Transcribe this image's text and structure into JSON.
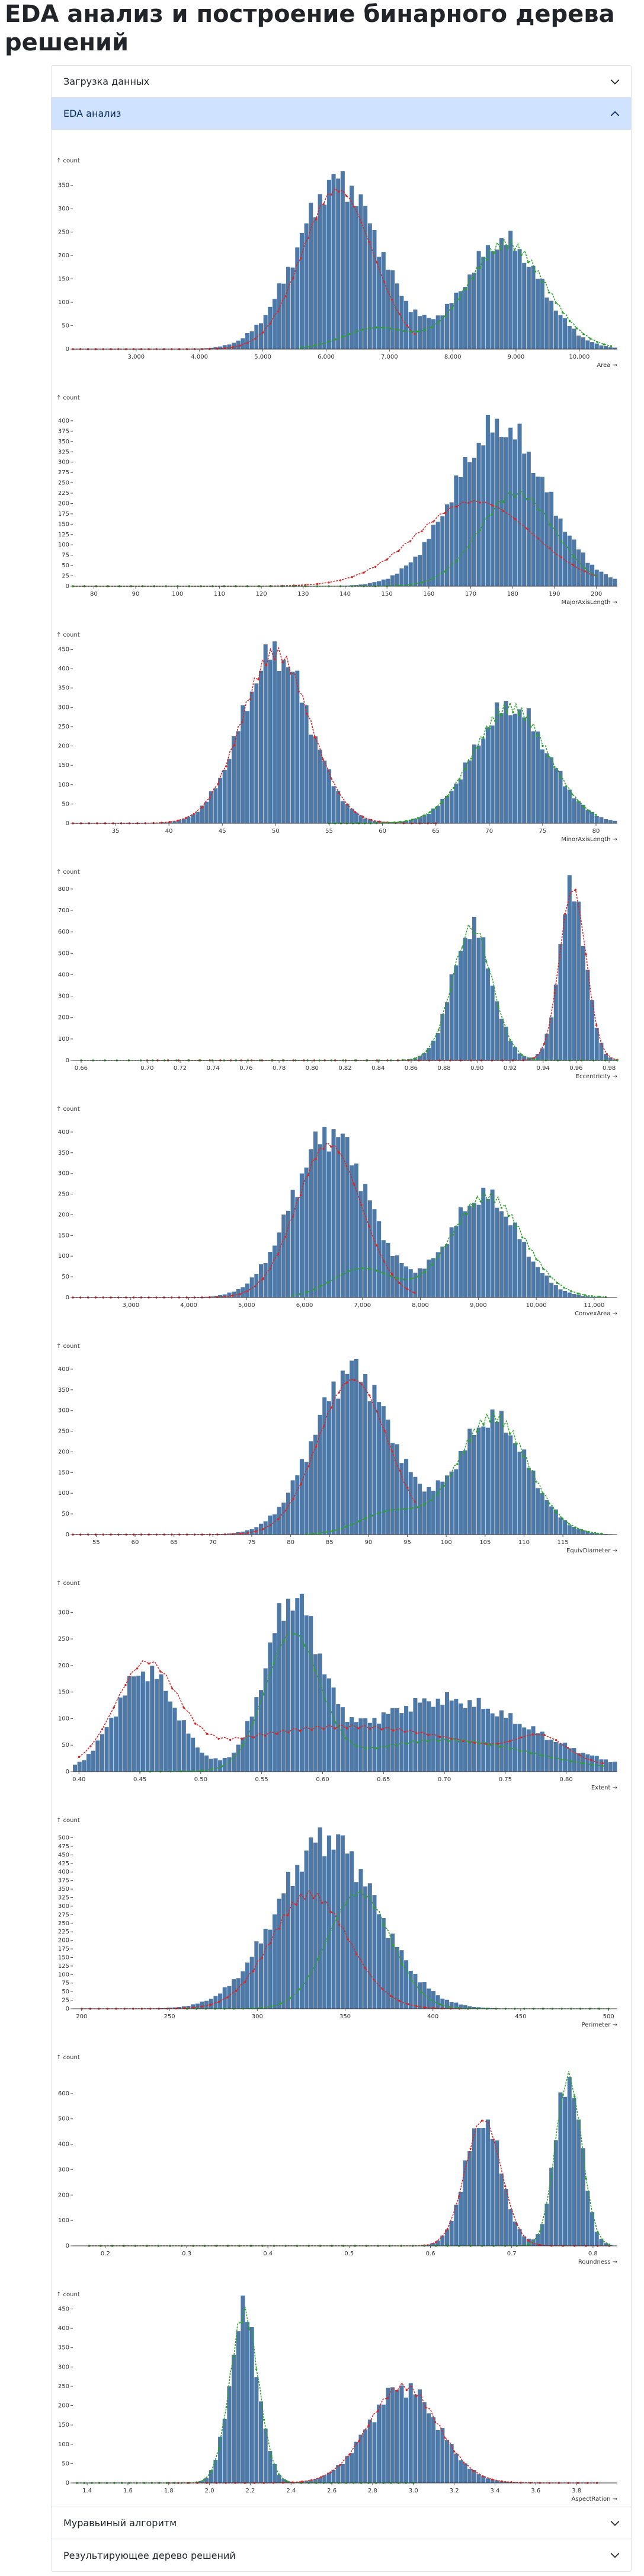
{
  "page": {
    "title": "EDA анализ и построение бинарного дерева решений"
  },
  "accordion": [
    {
      "label": "Загрузка данных",
      "open": false
    },
    {
      "label": "EDA анализ",
      "open": true
    },
    {
      "label": "Муравьиный алгоритм",
      "open": false
    },
    {
      "label": "Результирующее дерево решений",
      "open": false
    }
  ],
  "colors": {
    "bars": "#4e79a7",
    "series_a": "#d62728",
    "series_b": "#2ca02c"
  },
  "chart_data": [
    {
      "type": "bar",
      "xlabel": "Area →",
      "ylabel": "↑ count",
      "xlim": [
        2000,
        10600
      ],
      "ylim": [
        0,
        380
      ],
      "xticks": [
        3000,
        4000,
        5000,
        6000,
        7000,
        8000,
        9000,
        10000
      ],
      "xticklabels": [
        "3,000",
        "4,000",
        "5,000",
        "6,000",
        "7,000",
        "8,000",
        "9,000",
        "10,000"
      ],
      "yticks": [
        0,
        50,
        100,
        150,
        200,
        250,
        300,
        350
      ],
      "bars": {
        "components": [
          {
            "mu": 6200,
            "sigma": 650,
            "peak": 360
          },
          {
            "mu": 8800,
            "sigma": 600,
            "peak": 230
          }
        ]
      },
      "series": [
        {
          "color": "#d62728",
          "range": [
            2000,
            7400
          ],
          "components": [
            {
              "mu": 6180,
              "sigma": 560,
              "peak": 340
            }
          ]
        },
        {
          "color": "#2ca02c",
          "range": [
            5600,
            10500
          ],
          "components": [
            {
              "mu": 8850,
              "sigma": 620,
              "peak": 225
            },
            {
              "mu": 6800,
              "sigma": 520,
              "peak": 45
            }
          ]
        }
      ]
    },
    {
      "type": "bar",
      "xlabel": "MajorAxisLength →",
      "ylabel": "↑ count",
      "xlim": [
        75,
        205
      ],
      "ylim": [
        0,
        430
      ],
      "xticks": [
        80,
        90,
        100,
        110,
        120,
        130,
        140,
        150,
        160,
        170,
        180,
        190,
        200
      ],
      "xticklabels": [
        "80",
        "90",
        "100",
        "110",
        "120",
        "130",
        "140",
        "150",
        "160",
        "170",
        "180",
        "190",
        "200"
      ],
      "yticks": [
        0,
        25,
        50,
        75,
        100,
        125,
        150,
        175,
        200,
        225,
        250,
        275,
        300,
        325,
        350,
        375,
        400
      ],
      "bars": {
        "components": [
          {
            "mu": 177,
            "sigma": 11,
            "peak": 385
          }
        ]
      },
      "series": [
        {
          "color": "#d62728",
          "range": [
            75,
            200
          ],
          "components": [
            {
              "mu": 171,
              "sigma": 14,
              "peak": 205
            }
          ]
        },
        {
          "color": "#2ca02c",
          "range": [
            75,
            200
          ],
          "components": [
            {
              "mu": 181,
              "sigma": 9,
              "peak": 225
            }
          ]
        }
      ]
    },
    {
      "type": "bar",
      "xlabel": "MinorAxisLength →",
      "ylabel": "↑ count",
      "xlim": [
        31,
        82
      ],
      "ylim": [
        0,
        460
      ],
      "xticks": [
        35,
        40,
        45,
        50,
        55,
        60,
        65,
        70,
        75,
        80
      ],
      "xticklabels": [
        "35",
        "40",
        "45",
        "50",
        "55",
        "60",
        "65",
        "70",
        "75",
        "80"
      ],
      "yticks": [
        0,
        50,
        100,
        150,
        200,
        250,
        300,
        350,
        400,
        450
      ],
      "bars": {
        "components": [
          {
            "mu": 50,
            "sigma": 3.2,
            "peak": 440
          },
          {
            "mu": 72,
            "sigma": 3.5,
            "peak": 300
          }
        ]
      },
      "series": [
        {
          "color": "#d62728",
          "range": [
            31,
            65
          ],
          "components": [
            {
              "mu": 50,
              "sigma": 3.2,
              "peak": 440
            }
          ]
        },
        {
          "color": "#2ca02c",
          "range": [
            55,
            80
          ],
          "components": [
            {
              "mu": 72,
              "sigma": 3.5,
              "peak": 300
            }
          ]
        }
      ]
    },
    {
      "type": "bar",
      "xlabel": "Eccentricity →",
      "ylabel": "↑ count",
      "xlim": [
        0.655,
        0.985
      ],
      "ylim": [
        0,
        830
      ],
      "xticks": [
        0.66,
        0.7,
        0.72,
        0.74,
        0.76,
        0.78,
        0.8,
        0.82,
        0.84,
        0.86,
        0.88,
        0.9,
        0.92,
        0.94,
        0.96,
        0.98
      ],
      "xticklabels": [
        "0.66",
        "0.70",
        "0.72",
        "0.74",
        "0.76",
        "0.78",
        "0.80",
        "0.82",
        "0.84",
        "0.86",
        "0.88",
        "0.90",
        "0.92",
        "0.94",
        "0.96",
        "0.98"
      ],
      "yticks": [
        0,
        100,
        200,
        300,
        400,
        500,
        600,
        700,
        800
      ],
      "bars": {
        "components": [
          {
            "mu": 0.897,
            "sigma": 0.012,
            "peak": 620
          },
          {
            "mu": 0.958,
            "sigma": 0.008,
            "peak": 805
          }
        ]
      },
      "series": [
        {
          "color": "#d62728",
          "range": [
            0.7,
            0.985
          ],
          "components": [
            {
              "mu": 0.958,
              "sigma": 0.008,
              "peak": 805
            }
          ]
        },
        {
          "color": "#2ca02c",
          "range": [
            0.66,
            0.985
          ],
          "components": [
            {
              "mu": 0.897,
              "sigma": 0.012,
              "peak": 620
            }
          ]
        }
      ]
    },
    {
      "type": "bar",
      "xlabel": "ConvexArea →",
      "ylabel": "↑ count",
      "xlim": [
        2000,
        11400
      ],
      "ylim": [
        0,
        430
      ],
      "xticks": [
        3000,
        4000,
        5000,
        6000,
        7000,
        8000,
        9000,
        10000,
        11000
      ],
      "xticklabels": [
        "3,000",
        "4,000",
        "5,000",
        "6,000",
        "7,000",
        "8,000",
        "9,000",
        "10,000",
        "11,000"
      ],
      "yticks": [
        0,
        50,
        100,
        150,
        200,
        250,
        300,
        350,
        400
      ],
      "bars": {
        "components": [
          {
            "mu": 6450,
            "sigma": 650,
            "peak": 400
          },
          {
            "mu": 9100,
            "sigma": 600,
            "peak": 245
          }
        ]
      },
      "series": [
        {
          "color": "#d62728",
          "range": [
            2000,
            7900
          ],
          "components": [
            {
              "mu": 6420,
              "sigma": 560,
              "peak": 370
            }
          ]
        },
        {
          "color": "#2ca02c",
          "range": [
            5800,
            11200
          ],
          "components": [
            {
              "mu": 9150,
              "sigma": 620,
              "peak": 245
            },
            {
              "mu": 7000,
              "sigma": 520,
              "peak": 70
            }
          ]
        }
      ]
    },
    {
      "type": "bar",
      "xlabel": "EquivDiameter →",
      "ylabel": "↑ count",
      "xlim": [
        52,
        122
      ],
      "ylim": [
        0,
        430
      ],
      "xticks": [
        55,
        60,
        65,
        70,
        75,
        80,
        85,
        90,
        95,
        100,
        105,
        110,
        115
      ],
      "xticklabels": [
        "55",
        "60",
        "65",
        "70",
        "75",
        "80",
        "85",
        "90",
        "95",
        "100",
        "105",
        "110",
        "115"
      ],
      "yticks": [
        0,
        50,
        100,
        150,
        200,
        250,
        300,
        350,
        400
      ],
      "bars": {
        "components": [
          {
            "mu": 88,
            "sigma": 5,
            "peak": 400
          },
          {
            "mu": 106,
            "sigma": 4.5,
            "peak": 280
          }
        ]
      },
      "series": [
        {
          "color": "#d62728",
          "range": [
            52,
            96
          ],
          "components": [
            {
              "mu": 88,
              "sigma": 4.5,
              "peak": 375
            }
          ]
        },
        {
          "color": "#2ca02c",
          "range": [
            82,
            120
          ],
          "components": [
            {
              "mu": 106,
              "sigma": 4.5,
              "peak": 285
            },
            {
              "mu": 93,
              "sigma": 4,
              "peak": 55
            }
          ]
        }
      ]
    },
    {
      "type": "bar",
      "xlabel": "Extent →",
      "ylabel": "↑ count",
      "xlim": [
        0.395,
        0.842
      ],
      "ylim": [
        0,
        335
      ],
      "xticks": [
        0.4,
        0.45,
        0.5,
        0.55,
        0.6,
        0.65,
        0.7,
        0.75,
        0.8
      ],
      "xticklabels": [
        "0.40",
        "0.45",
        "0.50",
        "0.55",
        "0.60",
        "0.65",
        "0.70",
        "0.75",
        "0.80"
      ],
      "yticks": [
        0,
        50,
        100,
        150,
        200,
        250,
        300
      ],
      "bars": {
        "components": [
          {
            "mu": 0.455,
            "sigma": 0.025,
            "peak": 190
          },
          {
            "mu": 0.575,
            "sigma": 0.022,
            "peak": 300
          },
          {
            "mu": 0.7,
            "sigma": 0.07,
            "peak": 135
          }
        ]
      },
      "series": [
        {
          "color": "#d62728",
          "range": [
            0.4,
            0.83
          ],
          "components": [
            {
              "mu": 0.455,
              "sigma": 0.025,
              "peak": 180
            },
            {
              "mu": 0.62,
              "sigma": 0.11,
              "peak": 85
            },
            {
              "mu": 0.78,
              "sigma": 0.02,
              "peak": 40
            }
          ]
        },
        {
          "color": "#2ca02c",
          "range": [
            0.45,
            0.83
          ],
          "components": [
            {
              "mu": 0.575,
              "sigma": 0.022,
              "peak": 250
            },
            {
              "mu": 0.7,
              "sigma": 0.07,
              "peak": 60
            }
          ]
        }
      ]
    },
    {
      "type": "bar",
      "xlabel": "Perimeter →",
      "ylabel": "↑ count",
      "xlim": [
        195,
        505
      ],
      "ylim": [
        0,
        520
      ],
      "xticks": [
        200,
        250,
        300,
        350,
        400,
        450,
        500
      ],
      "xticklabels": [
        "200",
        "250",
        "300",
        "350",
        "400",
        "450",
        "500"
      ],
      "yticks": [
        0,
        25,
        50,
        75,
        100,
        125,
        150,
        175,
        200,
        225,
        250,
        275,
        300,
        325,
        350,
        375,
        400,
        425,
        450,
        475,
        500
      ],
      "bars": {
        "components": [
          {
            "mu": 340,
            "sigma": 28,
            "peak": 500
          }
        ]
      },
      "series": [
        {
          "color": "#d62728",
          "range": [
            200,
            420
          ],
          "components": [
            {
              "mu": 330,
              "sigma": 22,
              "peak": 335
            }
          ]
        },
        {
          "color": "#2ca02c",
          "range": [
            260,
            500
          ],
          "components": [
            {
              "mu": 358,
              "sigma": 18,
              "peak": 340
            }
          ]
        }
      ]
    },
    {
      "type": "bar",
      "xlabel": "Roundness →",
      "ylabel": "↑ count",
      "xlim": [
        0.16,
        0.83
      ],
      "ylim": [
        0,
        700
      ],
      "xticks": [
        0.2,
        0.3,
        0.4,
        0.5,
        0.6,
        0.7,
        0.8
      ],
      "xticklabels": [
        "0.2",
        "0.3",
        "0.4",
        "0.5",
        "0.6",
        "0.7",
        "0.8"
      ],
      "yticks": [
        0,
        100,
        200,
        300,
        400,
        500,
        600
      ],
      "bars": {
        "components": [
          {
            "mu": 0.665,
            "sigma": 0.022,
            "peak": 500
          },
          {
            "mu": 0.77,
            "sigma": 0.016,
            "peak": 670
          }
        ]
      },
      "series": [
        {
          "color": "#d62728",
          "range": [
            0.18,
            0.82
          ],
          "components": [
            {
              "mu": 0.665,
              "sigma": 0.022,
              "peak": 500
            }
          ]
        },
        {
          "color": "#2ca02c",
          "range": [
            0.18,
            0.82
          ],
          "components": [
            {
              "mu": 0.77,
              "sigma": 0.016,
              "peak": 670
            }
          ]
        }
      ]
    },
    {
      "type": "bar",
      "xlabel": "AspectRation →",
      "ylabel": "↑ count",
      "xlim": [
        1.33,
        4.0
      ],
      "ylim": [
        0,
        460
      ],
      "xticks": [
        1.4,
        1.6,
        1.8,
        2.0,
        2.2,
        2.4,
        2.6,
        2.8,
        3.0,
        3.2,
        3.4,
        3.6,
        3.8
      ],
      "xticklabels": [
        "1.4",
        "1.6",
        "1.8",
        "2.0",
        "2.2",
        "2.4",
        "2.6",
        "2.8",
        "3.0",
        "3.2",
        "3.4",
        "3.6",
        "3.8"
      ],
      "yticks": [
        0,
        50,
        100,
        150,
        200,
        250,
        300,
        350,
        400,
        450
      ],
      "bars": {
        "components": [
          {
            "mu": 2.17,
            "sigma": 0.07,
            "peak": 440
          },
          {
            "mu": 2.95,
            "sigma": 0.17,
            "peak": 250
          }
        ]
      },
      "series": [
        {
          "color": "#2ca02c",
          "range": [
            1.35,
            3.0
          ],
          "components": [
            {
              "mu": 2.17,
              "sigma": 0.07,
              "peak": 440
            }
          ]
        },
        {
          "color": "#d62728",
          "range": [
            1.8,
            3.9
          ],
          "components": [
            {
              "mu": 2.95,
              "sigma": 0.17,
              "peak": 250
            }
          ]
        }
      ]
    }
  ]
}
